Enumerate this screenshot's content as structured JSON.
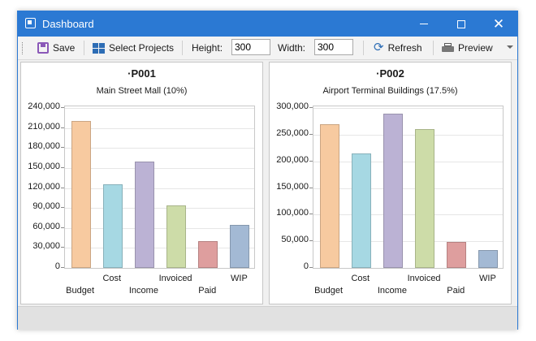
{
  "window": {
    "title": "Dashboard"
  },
  "toolbar": {
    "save_label": "Save",
    "select_projects_label": "Select Projects",
    "height_label": "Height:",
    "height_value": "300",
    "width_label": "Width:",
    "width_value": "300",
    "refresh_label": "Refresh",
    "preview_label": "Preview"
  },
  "chart_data": [
    {
      "type": "bar",
      "title": "·P001",
      "subtitle": "Main Street Mall (10%)",
      "categories": [
        "Budget",
        "Cost",
        "Income",
        "Invoiced",
        "Paid",
        "WIP"
      ],
      "values": [
        221000,
        126000,
        160000,
        94000,
        40000,
        65000
      ],
      "colors": [
        "#f7caa0",
        "#a6d8e3",
        "#bbb2d4",
        "#cddca8",
        "#de9e9e",
        "#a3b9d4"
      ],
      "ylim": [
        0,
        240000
      ],
      "yticks": [
        "0",
        "30,000",
        "60,000",
        "90,000",
        "120,000",
        "150,000",
        "180,000",
        "210,000",
        "240,000"
      ],
      "ystep": 30000,
      "grid": true,
      "legend": "none"
    },
    {
      "type": "bar",
      "title": "·P002",
      "subtitle": "Airport Terminal Buildings (17.5%)",
      "categories": [
        "Budget",
        "Cost",
        "Income",
        "Invoiced",
        "Paid",
        "WIP"
      ],
      "values": [
        270000,
        215000,
        290000,
        260000,
        49000,
        33000
      ],
      "colors": [
        "#f7caa0",
        "#a6d8e3",
        "#bbb2d4",
        "#cddca8",
        "#de9e9e",
        "#a3b9d4"
      ],
      "ylim": [
        0,
        300000
      ],
      "yticks": [
        "0",
        "50,000",
        "100,000",
        "150,000",
        "200,000",
        "250,000",
        "300,000"
      ],
      "ystep": 50000,
      "grid": true,
      "legend": "none"
    }
  ]
}
